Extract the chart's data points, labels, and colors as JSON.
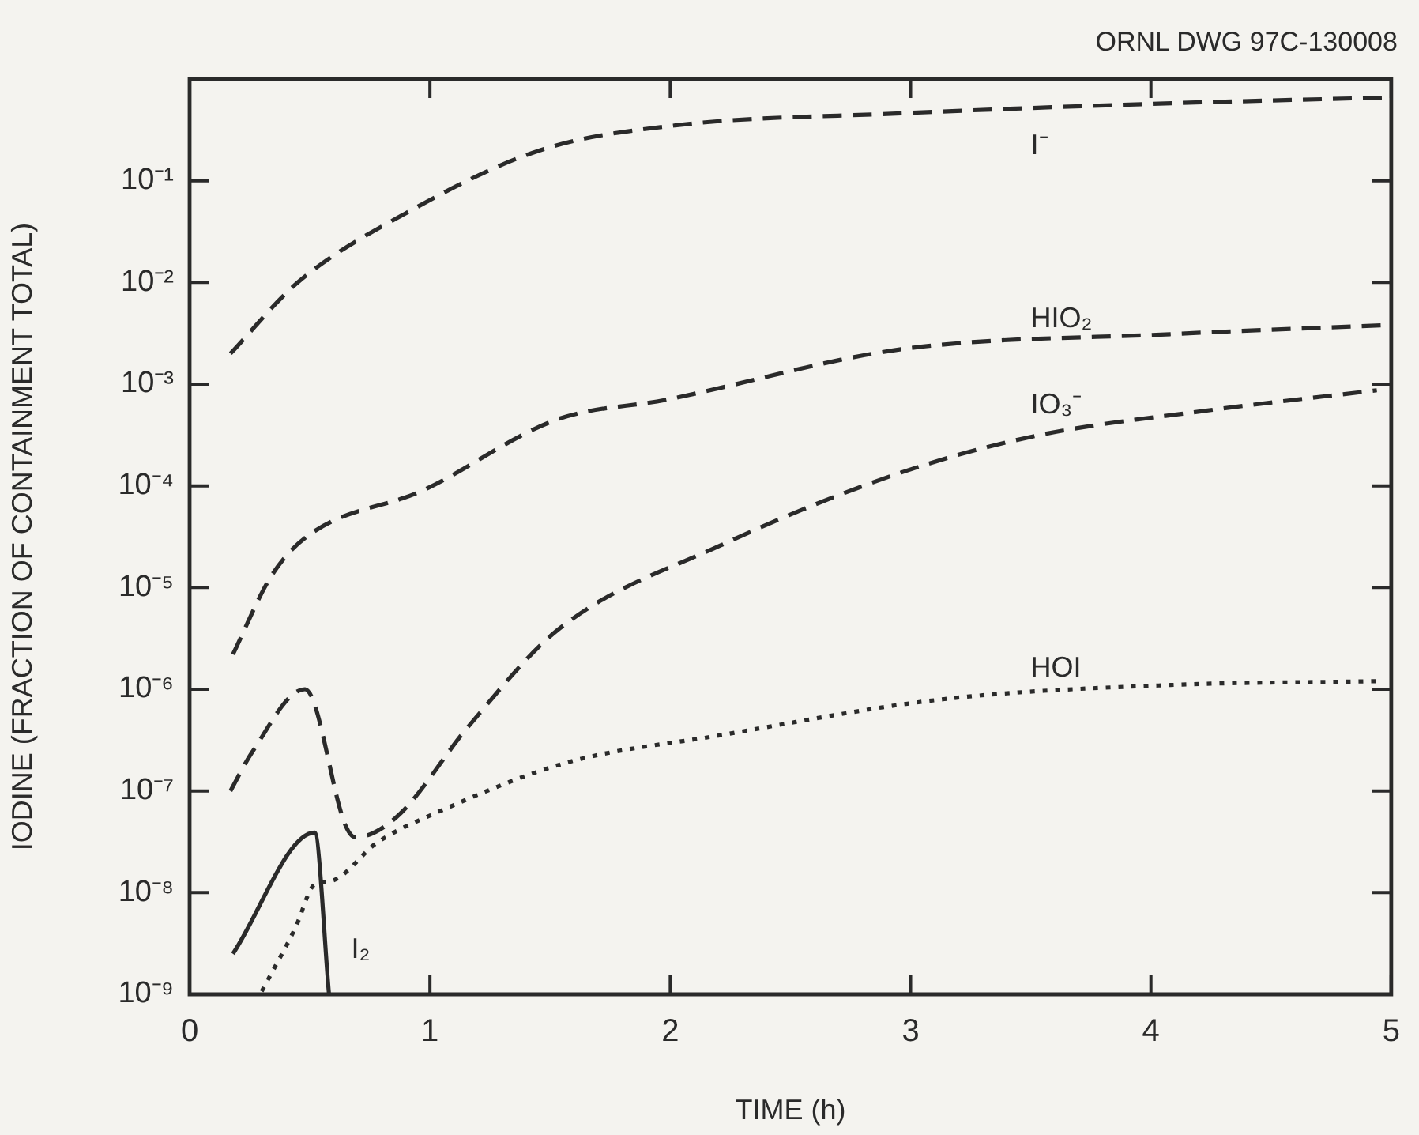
{
  "chart_data": {
    "type": "line",
    "xlabel": "TIME (h)",
    "ylabel": "IODINE (FRACTION OF CONTAINMENT TOTAL)",
    "log": "y",
    "grid": false,
    "legend": false,
    "marker": "none",
    "xlim": [
      0,
      5
    ],
    "xticks": [
      0,
      1,
      2,
      3,
      4,
      5
    ],
    "ylim": [
      1e-09,
      1
    ],
    "yticks": [
      {
        "value": 1e-09,
        "label": "10⁻⁹"
      },
      {
        "value": 1e-08,
        "label": "10⁻⁸"
      },
      {
        "value": 1e-07,
        "label": "10⁻⁷"
      },
      {
        "value": 1e-06,
        "label": "10⁻⁶"
      },
      {
        "value": 1e-05,
        "label": "10⁻⁵"
      },
      {
        "value": 0.0001,
        "label": "10⁻⁴"
      },
      {
        "value": 0.001,
        "label": "10⁻³"
      },
      {
        "value": 0.01,
        "label": "10⁻²"
      },
      {
        "value": 0.1,
        "label": "10⁻¹"
      }
    ],
    "series": [
      {
        "name": "I⁻",
        "color": "#2a2a2a",
        "line_style": "dashed",
        "x": [
          0.17,
          0.45,
          0.9,
          1.46,
          2.02,
          2.96,
          4.0,
          5.0
        ],
        "values": [
          0.002,
          0.01,
          0.048,
          0.2,
          0.35,
          0.46,
          0.57,
          0.66
        ]
      },
      {
        "name": "HIO₂",
        "color": "#2a2a2a",
        "line_style": "dashed",
        "x": [
          0.18,
          0.34,
          0.49,
          0.97,
          1.53,
          1.98,
          2.96,
          4.08,
          4.97
        ],
        "values": [
          2.2e-06,
          1.3e-05,
          3.2e-05,
          9e-05,
          0.00045,
          0.0007,
          0.0022,
          0.0031,
          0.0038
        ]
      },
      {
        "name": "IO₃⁻",
        "color": "#2a2a2a",
        "line_style": "dashed",
        "x": [
          0.17,
          0.26,
          0.48,
          0.65,
          0.69,
          0.86,
          1.16,
          1.53,
          2.21,
          2.96,
          3.52,
          4.26,
          4.94
        ],
        "values": [
          1e-07,
          2.4e-07,
          1e-06,
          4.5e-08,
          3.5e-08,
          5.5e-08,
          4.3e-07,
          3.8e-06,
          2.6e-05,
          0.000135,
          0.00031,
          0.00056,
          0.00087
        ]
      },
      {
        "name": "HOI",
        "color": "#2a2a2a",
        "line_style": "dotted",
        "x": [
          0.3,
          0.44,
          0.52,
          0.59,
          0.78,
          1.04,
          1.57,
          2.2,
          3.14,
          4.08,
          4.94
        ],
        "values": [
          1.07e-09,
          4.5e-09,
          1.2e-08,
          1.3e-08,
          3.1e-08,
          6.3e-08,
          1.9e-07,
          3.5e-07,
          8e-07,
          1.1e-06,
          1.2e-06
        ]
      },
      {
        "name": "I₂",
        "color": "#2a2a2a",
        "line_style": "solid",
        "x": [
          0.18,
          0.52,
          0.58
        ],
        "values": [
          2.5e-09,
          3.9e-08,
          1e-09
        ]
      }
    ],
    "annotations": [
      "ORNL DWG 97C-130008"
    ]
  }
}
